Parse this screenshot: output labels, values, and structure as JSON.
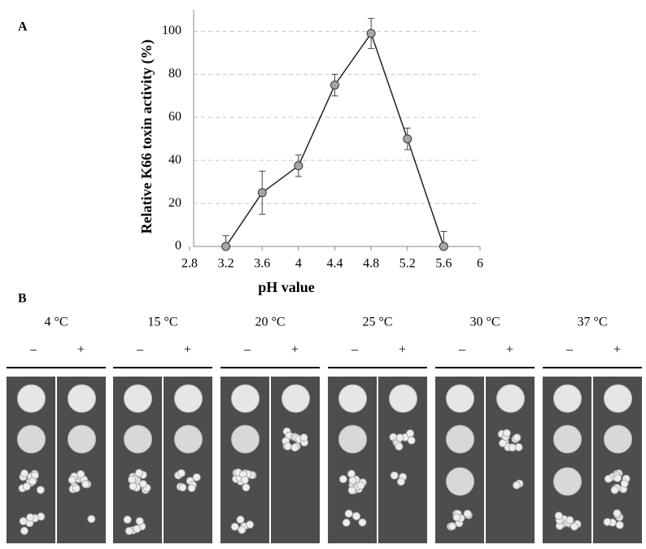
{
  "panel_a_label": "A",
  "panel_b_label": "B",
  "chart_data": {
    "type": "line",
    "x_label": "pH value",
    "y_label": "Relative K66 toxin activity (%)",
    "x": [
      3.2,
      3.6,
      4,
      4.4,
      4.8,
      5.2,
      5.6
    ],
    "values": [
      0,
      25,
      37.5,
      75,
      99,
      50,
      0
    ],
    "errors": [
      5,
      10,
      5,
      5,
      7,
      5,
      7
    ],
    "color": "#222222",
    "marker_color": "#a6a6a6",
    "xlim": [
      2.8,
      6
    ],
    "xticks": [
      2.8,
      3.2,
      3.6,
      4,
      4.4,
      4.8,
      5.2,
      5.6,
      6
    ],
    "ylim": [
      0,
      110
    ],
    "yticks": [
      0,
      20,
      40,
      60,
      80,
      100
    ],
    "grid": true
  },
  "panel_b": {
    "groups": [
      {
        "label": "4 °C",
        "minus": "–",
        "plus": "+"
      },
      {
        "label": "15 °C",
        "minus": "–",
        "plus": "+"
      },
      {
        "label": "20 °C",
        "minus": "–",
        "plus": "+"
      },
      {
        "label": "25 °C",
        "minus": "–",
        "plus": "+"
      },
      {
        "label": "30 °C",
        "minus": "–",
        "plus": "+"
      },
      {
        "label": "37 °C",
        "minus": "–",
        "plus": "+"
      }
    ]
  }
}
